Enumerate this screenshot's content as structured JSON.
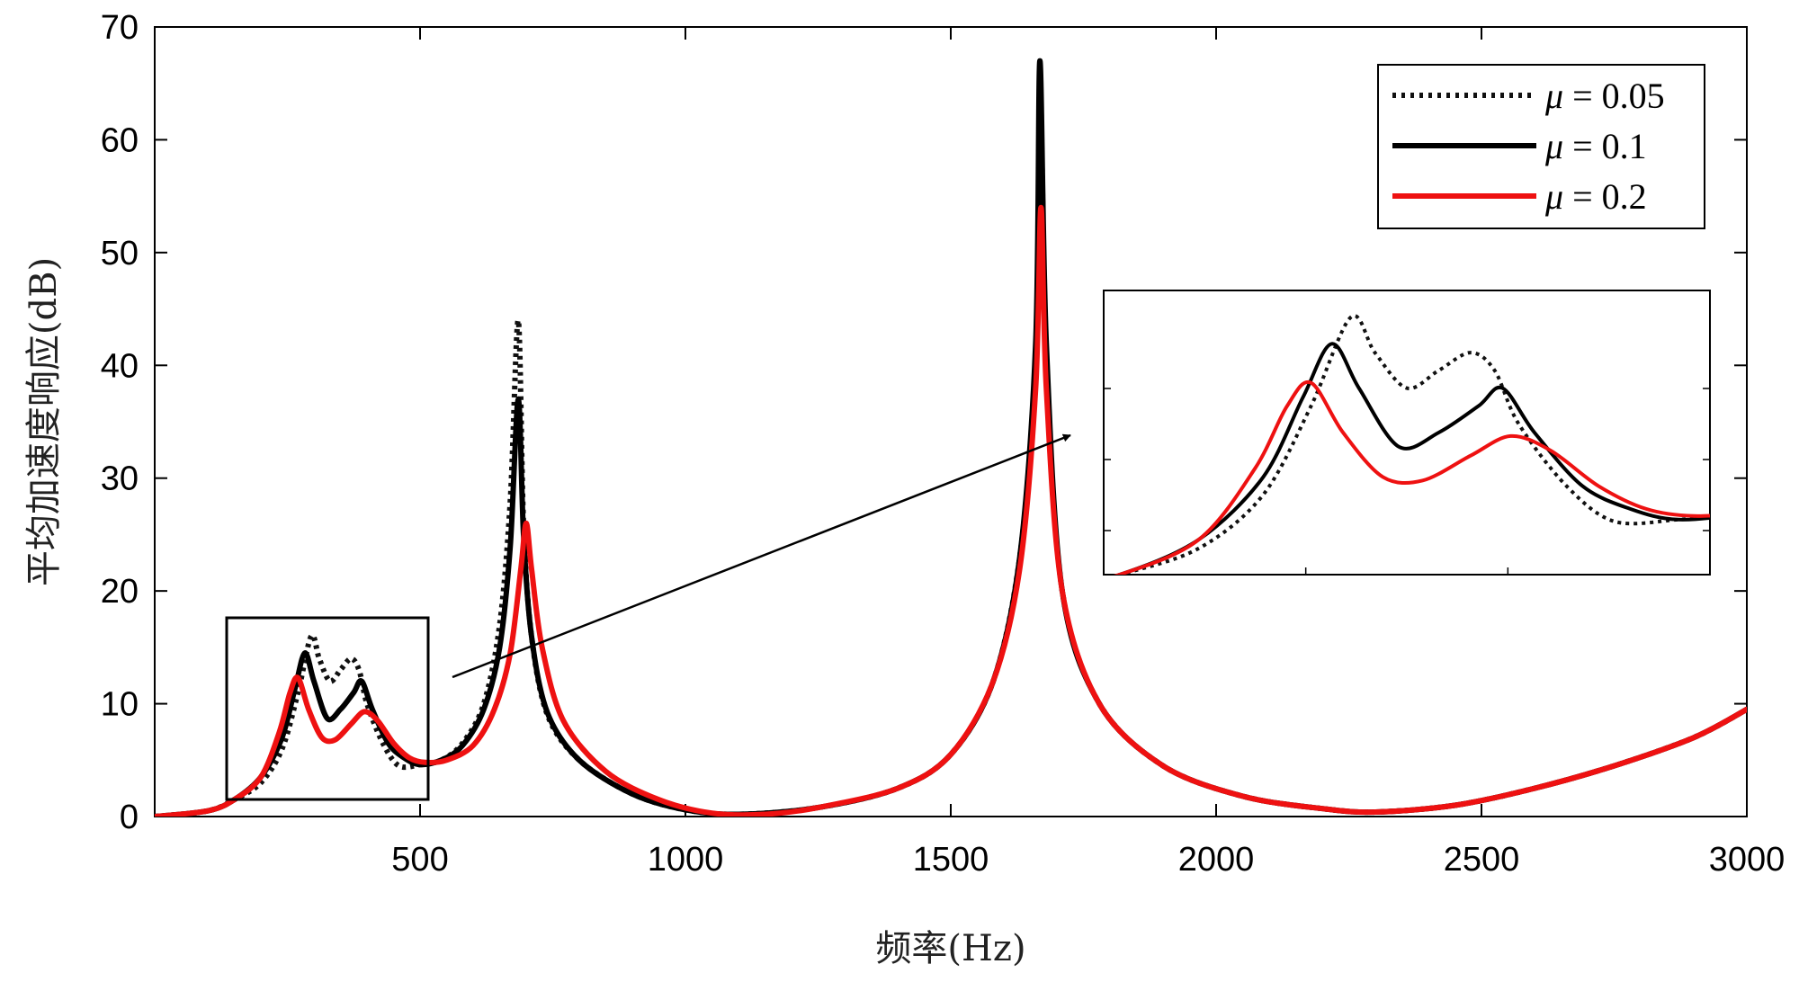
{
  "chart_data": {
    "type": "line",
    "title": "",
    "xlabel": "频率(Hz)",
    "ylabel": "平均加速度响应(dB)",
    "xlim": [
      0,
      3000
    ],
    "ylim": [
      0,
      70
    ],
    "xticks": [
      500,
      1000,
      1500,
      2000,
      2500,
      3000
    ],
    "yticks": [
      0,
      10,
      20,
      30,
      40,
      50,
      60,
      70
    ],
    "legend_position": "top-right",
    "legend": [
      {
        "symbol": "μ",
        "text": " = 0.05",
        "style": "dotted",
        "color": "#111111"
      },
      {
        "symbol": "μ",
        "text": " = 0.1",
        "style": "solid",
        "color": "#000000"
      },
      {
        "symbol": "μ",
        "text": " = 0.2",
        "style": "solid",
        "color": "#ee1111"
      }
    ],
    "series": [
      {
        "name": "μ = 0.05",
        "color": "#111111",
        "style": "dotted",
        "points": [
          [
            0,
            0
          ],
          [
            100,
            0.5
          ],
          [
            150,
            1.5
          ],
          [
            200,
            3
          ],
          [
            240,
            6
          ],
          [
            270,
            11
          ],
          [
            295,
            16
          ],
          [
            310,
            14
          ],
          [
            330,
            12
          ],
          [
            350,
            13
          ],
          [
            370,
            14
          ],
          [
            385,
            13
          ],
          [
            400,
            10
          ],
          [
            430,
            6.5
          ],
          [
            460,
            4.5
          ],
          [
            500,
            4.6
          ],
          [
            540,
            5
          ],
          [
            580,
            6.5
          ],
          [
            620,
            10
          ],
          [
            650,
            17
          ],
          [
            670,
            28
          ],
          [
            685,
            44
          ],
          [
            695,
            26
          ],
          [
            710,
            16
          ],
          [
            740,
            9
          ],
          [
            800,
            5
          ],
          [
            900,
            2
          ],
          [
            1000,
            0.6
          ],
          [
            1100,
            0.2
          ],
          [
            1250,
            0.8
          ],
          [
            1400,
            2.5
          ],
          [
            1500,
            5.5
          ],
          [
            1580,
            12
          ],
          [
            1630,
            23
          ],
          [
            1660,
            40
          ],
          [
            1670,
            60
          ],
          [
            1680,
            40
          ],
          [
            1710,
            20
          ],
          [
            1780,
            10
          ],
          [
            1900,
            4.5
          ],
          [
            2050,
            1.8
          ],
          [
            2200,
            0.7
          ],
          [
            2300,
            0.4
          ],
          [
            2450,
            1
          ],
          [
            2600,
            2.5
          ],
          [
            2750,
            4.5
          ],
          [
            2900,
            7
          ],
          [
            3000,
            9.5
          ]
        ]
      },
      {
        "name": "μ = 0.1",
        "color": "#000000",
        "style": "solid",
        "points": [
          [
            0,
            0
          ],
          [
            100,
            0.5
          ],
          [
            150,
            1.5
          ],
          [
            200,
            3.5
          ],
          [
            240,
            7
          ],
          [
            265,
            11.5
          ],
          [
            283,
            14.5
          ],
          [
            300,
            12
          ],
          [
            325,
            8.7
          ],
          [
            350,
            9.5
          ],
          [
            375,
            11
          ],
          [
            390,
            12
          ],
          [
            410,
            9.5
          ],
          [
            440,
            6.5
          ],
          [
            470,
            5.2
          ],
          [
            500,
            4.6
          ],
          [
            540,
            5
          ],
          [
            580,
            6.3
          ],
          [
            620,
            9.5
          ],
          [
            650,
            15
          ],
          [
            670,
            24
          ],
          [
            685,
            37
          ],
          [
            695,
            25
          ],
          [
            710,
            16
          ],
          [
            740,
            9.2
          ],
          [
            800,
            5
          ],
          [
            900,
            2
          ],
          [
            1000,
            0.6
          ],
          [
            1100,
            0.2
          ],
          [
            1250,
            0.8
          ],
          [
            1400,
            2.5
          ],
          [
            1500,
            5.5
          ],
          [
            1580,
            12
          ],
          [
            1630,
            23
          ],
          [
            1660,
            42
          ],
          [
            1668,
            67
          ],
          [
            1680,
            42
          ],
          [
            1710,
            20
          ],
          [
            1780,
            10
          ],
          [
            1900,
            4.5
          ],
          [
            2050,
            1.8
          ],
          [
            2200,
            0.7
          ],
          [
            2300,
            0.4
          ],
          [
            2450,
            1
          ],
          [
            2600,
            2.5
          ],
          [
            2750,
            4.5
          ],
          [
            2900,
            7
          ],
          [
            3000,
            9.5
          ]
        ]
      },
      {
        "name": "μ = 0.2",
        "color": "#ee1111",
        "style": "solid",
        "points": [
          [
            0,
            0
          ],
          [
            100,
            0.5
          ],
          [
            150,
            1.5
          ],
          [
            200,
            3.5
          ],
          [
            235,
            7.5
          ],
          [
            255,
            11
          ],
          [
            270,
            12.3
          ],
          [
            290,
            9.5
          ],
          [
            315,
            7
          ],
          [
            340,
            6.8
          ],
          [
            370,
            8.2
          ],
          [
            395,
            9.3
          ],
          [
            420,
            8.5
          ],
          [
            450,
            6.5
          ],
          [
            480,
            5.2
          ],
          [
            510,
            4.8
          ],
          [
            550,
            5
          ],
          [
            600,
            6.3
          ],
          [
            640,
            9.5
          ],
          [
            670,
            14.5
          ],
          [
            690,
            22
          ],
          [
            700,
            26
          ],
          [
            710,
            22
          ],
          [
            730,
            15
          ],
          [
            770,
            8.5
          ],
          [
            850,
            4
          ],
          [
            950,
            1.5
          ],
          [
            1050,
            0.3
          ],
          [
            1150,
            0.2
          ],
          [
            1250,
            0.8
          ],
          [
            1400,
            2.5
          ],
          [
            1500,
            5.5
          ],
          [
            1580,
            12
          ],
          [
            1630,
            22
          ],
          [
            1660,
            38
          ],
          [
            1670,
            54
          ],
          [
            1680,
            38
          ],
          [
            1710,
            20
          ],
          [
            1780,
            10
          ],
          [
            1900,
            4.5
          ],
          [
            2050,
            1.8
          ],
          [
            2200,
            0.7
          ],
          [
            2300,
            0.4
          ],
          [
            2450,
            1
          ],
          [
            2600,
            2.5
          ],
          [
            2750,
            4.5
          ],
          [
            2900,
            7
          ],
          [
            3000,
            9.5
          ]
        ]
      }
    ],
    "zoom_region": {
      "xlim": [
        140,
        520
      ],
      "ylim": [
        1.5,
        17.5
      ]
    }
  }
}
